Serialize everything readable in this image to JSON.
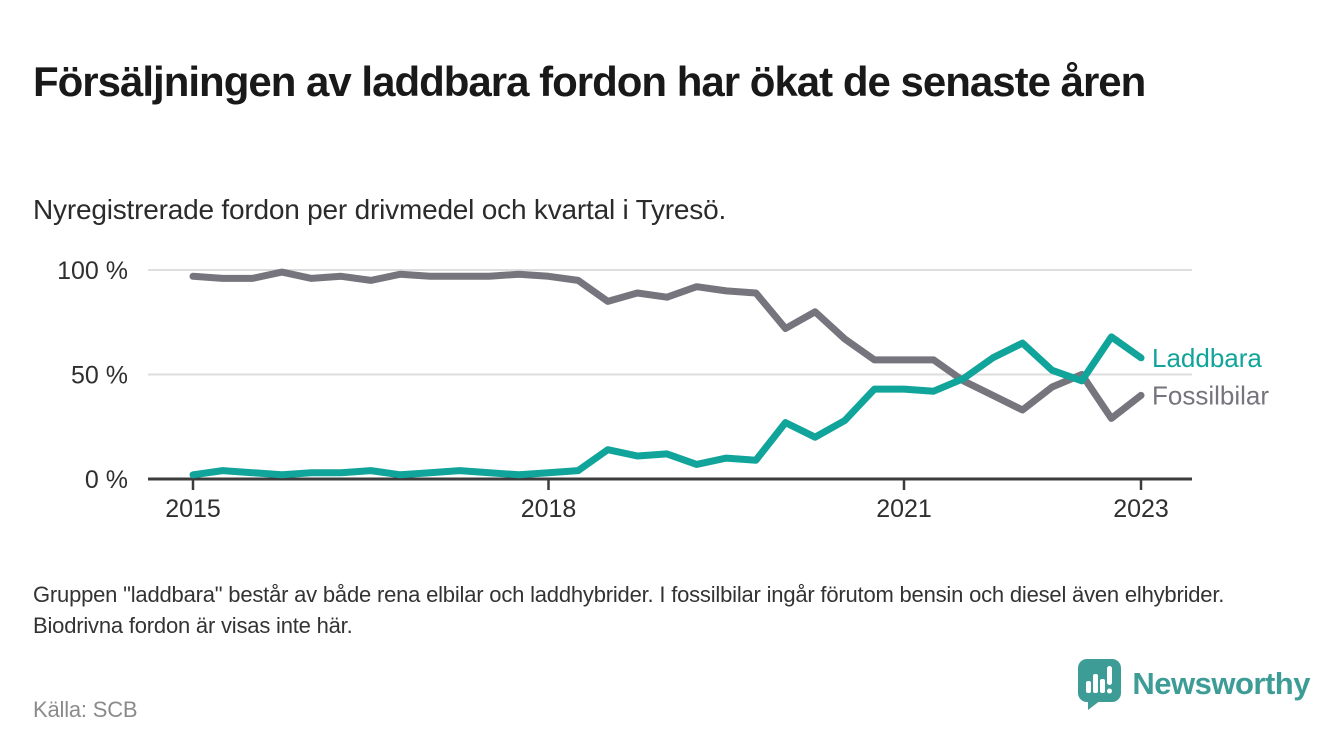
{
  "header": {
    "title": "Försäljningen av laddbara fordon har ökat de senaste åren",
    "subtitle": "Nyregistrerade fordon per drivmedel och kvartal i Tyresö."
  },
  "chart_data": {
    "type": "line",
    "unit": "%",
    "ylim": [
      0,
      100
    ],
    "grid": "horizontal",
    "legend_position": "end-of-line",
    "quarters": [
      "2015 Q1",
      "2015 Q2",
      "2015 Q3",
      "2015 Q4",
      "2016 Q1",
      "2016 Q2",
      "2016 Q3",
      "2016 Q4",
      "2017 Q1",
      "2017 Q2",
      "2017 Q3",
      "2017 Q4",
      "2018 Q1",
      "2018 Q2",
      "2018 Q3",
      "2018 Q4",
      "2019 Q1",
      "2019 Q2",
      "2019 Q3",
      "2019 Q4",
      "2020 Q1",
      "2020 Q2",
      "2020 Q3",
      "2020 Q4",
      "2021 Q1",
      "2021 Q2",
      "2021 Q3",
      "2021 Q4",
      "2022 Q1",
      "2022 Q2",
      "2022 Q3",
      "2022 Q4",
      "2023 Q1"
    ],
    "series": [
      {
        "name": "Laddbara",
        "color": "#10A49A",
        "values": [
          2,
          4,
          3,
          2,
          3,
          3,
          4,
          2,
          3,
          4,
          3,
          2,
          3,
          4,
          14,
          11,
          12,
          7,
          10,
          9,
          27,
          20,
          28,
          43,
          43,
          42,
          48,
          58,
          65,
          52,
          47,
          68,
          58
        ]
      },
      {
        "name": "Fossilbilar",
        "color": "#76757E",
        "values": [
          97,
          96,
          96,
          99,
          96,
          97,
          95,
          98,
          97,
          97,
          97,
          98,
          97,
          95,
          85,
          89,
          87,
          92,
          90,
          89,
          72,
          80,
          67,
          57,
          57,
          57,
          47,
          40,
          33,
          44,
          50,
          29,
          40
        ]
      }
    ],
    "y_ticks": [
      {
        "value": 0,
        "label": "0 %"
      },
      {
        "value": 50,
        "label": "50 %"
      },
      {
        "value": 100,
        "label": "100 %"
      }
    ],
    "x_ticks": [
      {
        "quarter_index": 0,
        "label": "2015"
      },
      {
        "quarter_index": 12,
        "label": "2018"
      },
      {
        "quarter_index": 24,
        "label": "2021"
      },
      {
        "quarter_index": 32,
        "label": "2023"
      }
    ]
  },
  "footer": {
    "note": "Gruppen \"laddbara\" består av både rena elbilar och laddhybrider. I fossilbilar ingår förutom bensin och diesel även elhybrider. Biodrivna fordon är visas inte här.",
    "source": "Källa: SCB",
    "brand": "Newsworthy",
    "brand_color": "#3E9C96"
  }
}
